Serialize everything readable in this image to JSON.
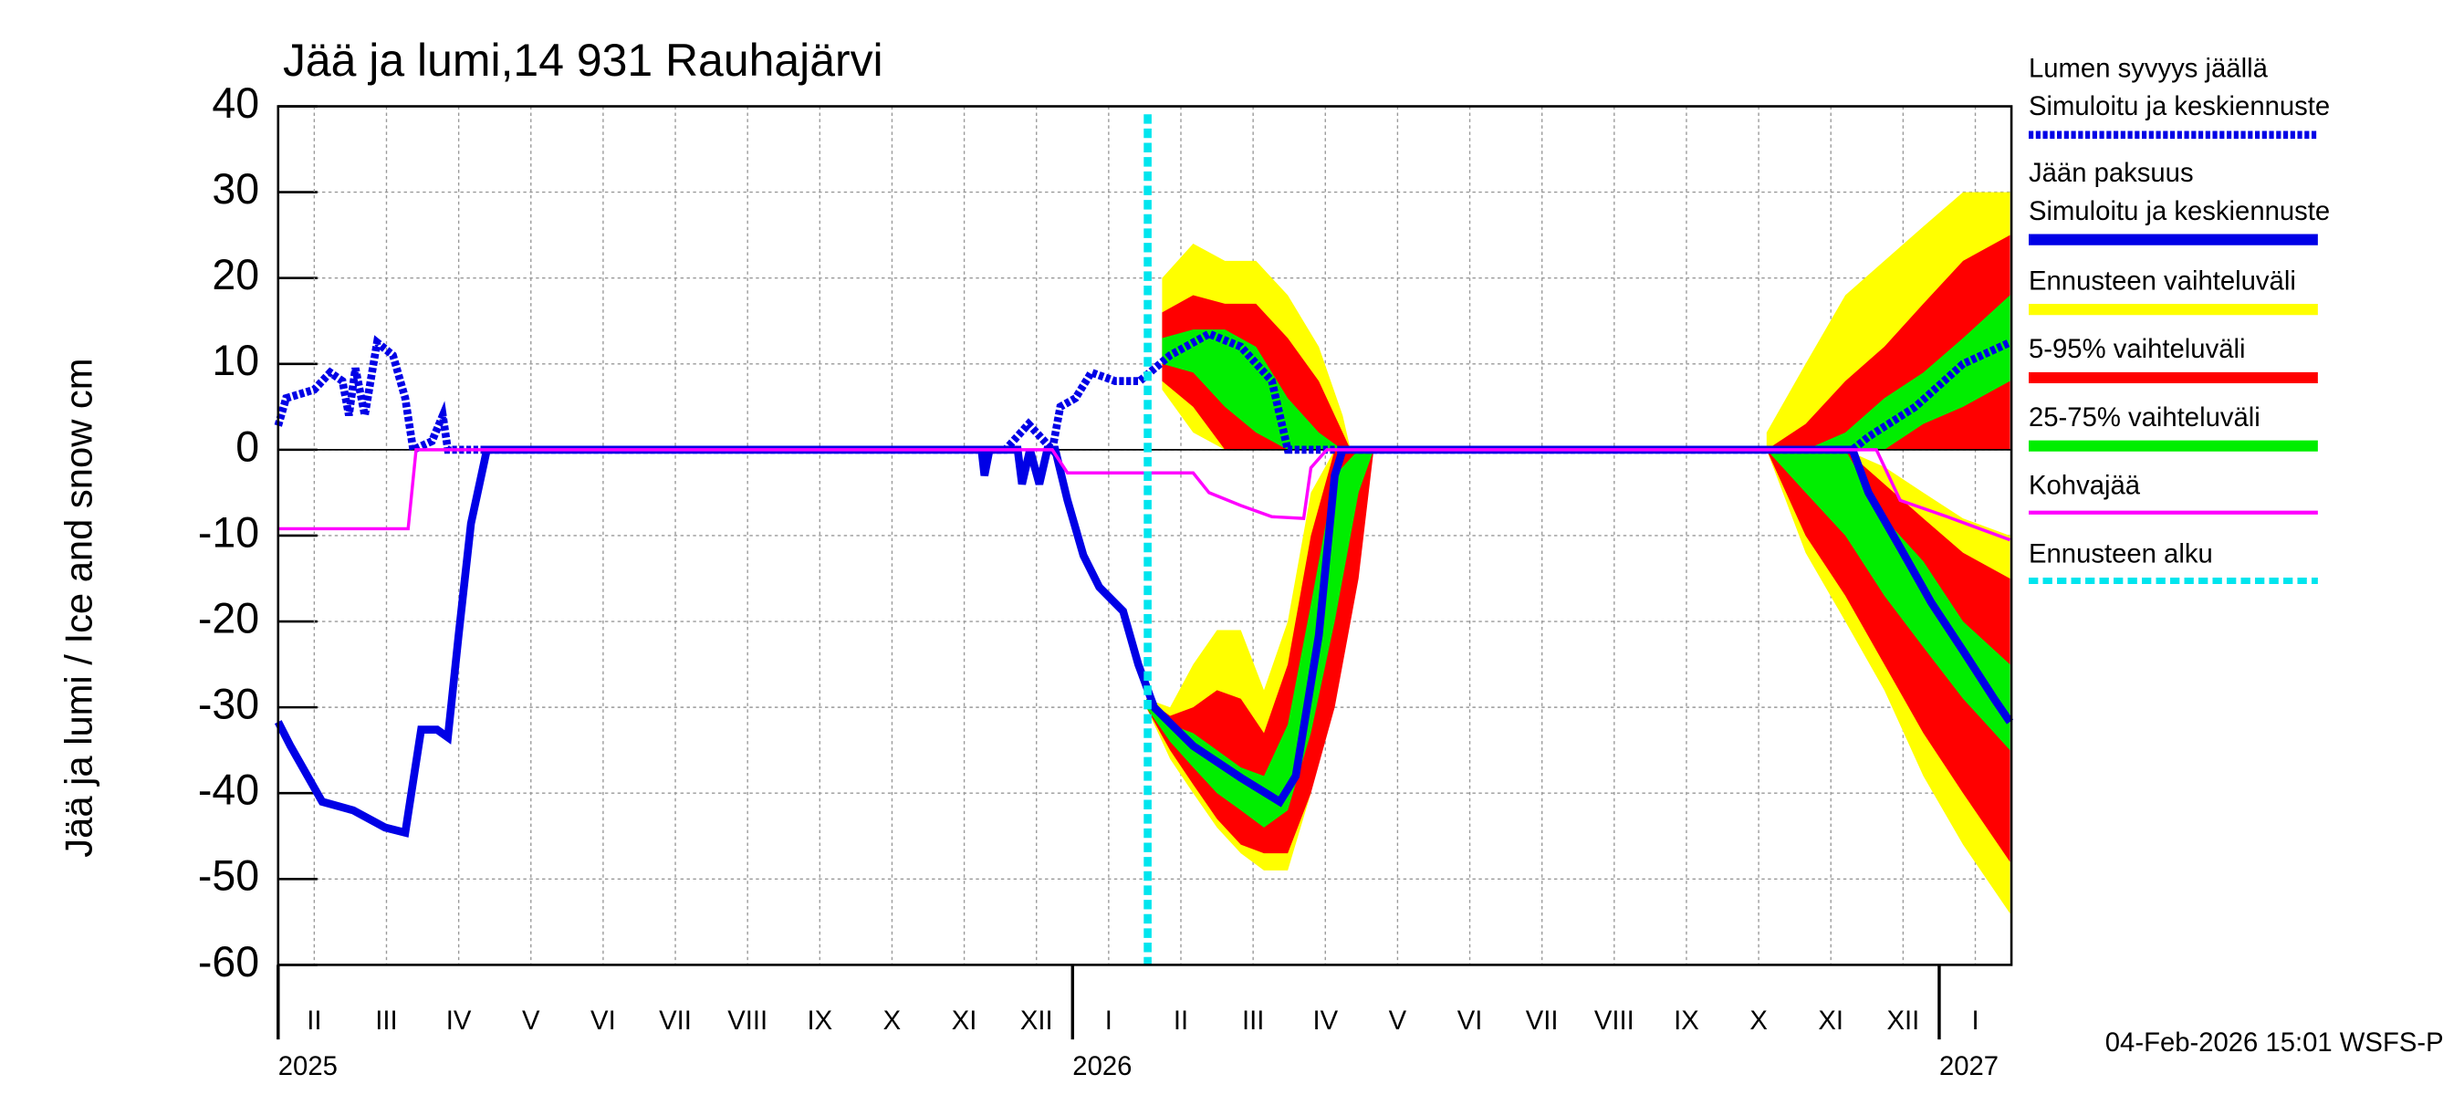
{
  "chart_data": {
    "type": "line",
    "title": "Jää ja lumi,14 931 Rauhajärvi",
    "y_label": "Jää ja lumi / Ice and snow    cm",
    "footer": "04-Feb-2026 15:01 WSFS-P",
    "ylim": [
      -60,
      40
    ],
    "yticks": [
      40,
      30,
      20,
      10,
      0,
      -10,
      -20,
      -30,
      -40,
      -50,
      -60
    ],
    "xlim": [
      0,
      24
    ],
    "xticks": [
      {
        "value": 0.5,
        "label": "II"
      },
      {
        "value": 1.5,
        "label": "III"
      },
      {
        "value": 2.5,
        "label": "IV"
      },
      {
        "value": 3.5,
        "label": "V"
      },
      {
        "value": 4.5,
        "label": "VI"
      },
      {
        "value": 5.5,
        "label": "VII"
      },
      {
        "value": 6.5,
        "label": "VIII"
      },
      {
        "value": 7.5,
        "label": "IX"
      },
      {
        "value": 8.5,
        "label": "X"
      },
      {
        "value": 9.5,
        "label": "XI"
      },
      {
        "value": 10.5,
        "label": "XII"
      },
      {
        "value": 11.5,
        "label": "I"
      },
      {
        "value": 12.5,
        "label": "II"
      },
      {
        "value": 13.5,
        "label": "III"
      },
      {
        "value": 14.5,
        "label": "IV"
      },
      {
        "value": 15.5,
        "label": "V"
      },
      {
        "value": 16.5,
        "label": "VI"
      },
      {
        "value": 17.5,
        "label": "VII"
      },
      {
        "value": 18.5,
        "label": "VIII"
      },
      {
        "value": 19.5,
        "label": "IX"
      },
      {
        "value": 20.5,
        "label": "X"
      },
      {
        "value": 21.5,
        "label": "XI"
      },
      {
        "value": 22.5,
        "label": "XII"
      },
      {
        "value": 23.5,
        "label": "I"
      }
    ],
    "year_ticks": [
      {
        "value": 0,
        "label": "2025"
      },
      {
        "value": 11,
        "label": "2026"
      },
      {
        "value": 23,
        "label": "2027"
      }
    ],
    "grid": true,
    "forecast_start": {
      "name": "Ennusteen alku",
      "x": 12.04,
      "color": "#00e5ee"
    },
    "bands": [
      {
        "name": "Ennusteen vaihteluväli",
        "color": "#ffff00",
        "pieces": [
          {
            "x": [
              12.24,
              12.67,
              13.11,
              13.54,
              13.98,
              14.41,
              14.74,
              14.85
            ],
            "low": [
              7,
              2,
              0,
              0,
              0,
              0,
              0,
              0
            ],
            "high": [
              20,
              24,
              22,
              22,
              18,
              12,
              4,
              0
            ]
          },
          {
            "x": [
              12.02,
              12.35,
              12.67,
              13.0,
              13.33,
              13.65,
              13.98,
              14.3,
              14.63,
              14.96,
              15.17
            ],
            "low": [
              -30,
              -36,
              -40,
              -44,
              -47,
              -49,
              -49,
              -40,
              -25,
              -10,
              0
            ],
            "high": [
              -29,
              -30,
              -25,
              -21,
              -21,
              -28,
              -20,
              -5,
              0,
              0,
              0
            ]
          },
          {
            "x": [
              20.61,
              21.15,
              21.7,
              22.24,
              22.78,
              23.33,
              23.98
            ],
            "low": [
              0,
              0,
              0,
              0,
              0,
              0,
              0
            ],
            "high": [
              2,
              10,
              18,
              22,
              26,
              30,
              30
            ]
          },
          {
            "x": [
              20.61,
              21.15,
              21.7,
              22.24,
              22.78,
              23.33,
              23.98
            ],
            "low": [
              0,
              -12,
              -20,
              -28,
              -38,
              -46,
              -54
            ],
            "high": [
              0,
              0,
              0,
              -2,
              -5,
              -8,
              -10
            ]
          }
        ]
      },
      {
        "name": "5-95% vaihteluväli",
        "color": "#ff0000",
        "pieces": [
          {
            "x": [
              12.24,
              12.67,
              13.11,
              13.54,
              13.98,
              14.41,
              14.74,
              14.85
            ],
            "low": [
              8,
              5,
              0,
              0,
              0,
              0,
              0,
              0
            ],
            "high": [
              16,
              18,
              17,
              17,
              13,
              8,
              2,
              0
            ]
          },
          {
            "x": [
              12.02,
              12.35,
              12.67,
              13.0,
              13.33,
              13.65,
              13.98,
              14.3,
              14.63,
              14.96,
              15.17
            ],
            "low": [
              -30,
              -35,
              -39,
              -43,
              -46,
              -47,
              -47,
              -40,
              -30,
              -15,
              0
            ],
            "high": [
              -29,
              -31,
              -30,
              -28,
              -29,
              -33,
              -25,
              -10,
              0,
              0,
              0
            ]
          },
          {
            "x": [
              20.61,
              21.15,
              21.7,
              22.24,
              22.78,
              23.33,
              23.98
            ],
            "low": [
              0,
              0,
              0,
              0,
              0,
              0,
              0
            ],
            "high": [
              0,
              3,
              8,
              12,
              17,
              22,
              25
            ]
          },
          {
            "x": [
              20.61,
              21.15,
              21.7,
              22.24,
              22.78,
              23.33,
              23.98
            ],
            "low": [
              0,
              -10,
              -17,
              -25,
              -33,
              -40,
              -48
            ],
            "high": [
              0,
              0,
              0,
              -4,
              -8,
              -12,
              -15
            ]
          }
        ]
      },
      {
        "name": "25-75% vaihteluväli",
        "color": "#00ee00",
        "pieces": [
          {
            "x": [
              12.24,
              12.67,
              13.11,
              13.54,
              13.98,
              14.41,
              14.74,
              14.85
            ],
            "low": [
              10,
              9,
              5,
              2,
              0,
              0,
              0,
              0
            ],
            "high": [
              13,
              14,
              14,
              12,
              6,
              2,
              0,
              0
            ]
          },
          {
            "x": [
              12.02,
              12.35,
              12.67,
              13.0,
              13.33,
              13.65,
              13.98,
              14.3,
              14.63,
              14.96,
              15.17
            ],
            "low": [
              -30,
              -34,
              -37,
              -40,
              -42,
              -44,
              -42,
              -33,
              -20,
              -5,
              0
            ],
            "high": [
              -29,
              -32,
              -33,
              -35,
              -37,
              -38,
              -32,
              -18,
              -3,
              0,
              0
            ]
          },
          {
            "x": [
              20.61,
              21.15,
              21.7,
              22.24,
              22.78,
              23.33,
              23.98
            ],
            "low": [
              0,
              0,
              0,
              0,
              3,
              5,
              8
            ],
            "high": [
              0,
              0,
              2,
              6,
              9,
              13,
              18
            ]
          },
          {
            "x": [
              20.61,
              21.15,
              21.7,
              22.24,
              22.78,
              23.33,
              23.98
            ],
            "low": [
              0,
              -5,
              -10,
              -17,
              -23,
              -29,
              -35
            ],
            "high": [
              0,
              0,
              0,
              -8,
              -13,
              -20,
              -25
            ]
          }
        ]
      }
    ],
    "series": [
      {
        "name": "Lumen syvyys jäällä",
        "subtitle": "Simuloitu ja keskiennuste",
        "color": "#0000e6",
        "dashed": true,
        "x": [
          0,
          0.11,
          0.5,
          0.72,
          0.89,
          0.98,
          1.07,
          1.2,
          1.37,
          1.59,
          1.76,
          1.87,
          2.13,
          2.28,
          2.35,
          10.07,
          10.39,
          10.72,
          10.83,
          11.04,
          11.26,
          11.59,
          11.93,
          12.35,
          12.89,
          13.33,
          13.76,
          13.98,
          21.8,
          22.02,
          22.67,
          23.33,
          23.98
        ],
        "values": [
          2.8,
          6,
          7,
          9,
          8,
          4,
          9.5,
          4,
          12.5,
          11,
          6,
          0,
          1,
          4,
          0,
          0,
          3,
          0,
          5,
          6,
          9,
          8,
          8,
          11,
          13.5,
          12,
          8,
          0,
          0,
          1.5,
          5,
          10,
          12.5
        ]
      },
      {
        "name": "Jään paksuus",
        "subtitle": "Simuloitu ja keskiennuste",
        "color": "#0000e6",
        "dashed": false,
        "x": [
          0,
          0.17,
          0.61,
          1.04,
          1.48,
          1.76,
          1.98,
          2.2,
          2.35,
          2.5,
          2.67,
          2.89,
          9.74,
          9.78,
          9.85,
          10.24,
          10.3,
          10.41,
          10.54,
          10.65,
          10.76,
          10.93,
          11.15,
          11.37,
          11.7,
          11.91,
          12.13,
          12.67,
          13.33,
          13.87,
          14.09,
          14.41,
          14.63,
          14.74,
          21.8,
          22.02,
          22.46,
          22.89,
          23.33,
          23.76,
          23.98
        ],
        "values": [
          -31.7,
          -34.5,
          -41,
          -42,
          -44,
          -44.6,
          -32.6,
          -32.6,
          -33.5,
          -21.5,
          -8.6,
          0,
          0,
          -3,
          0,
          0,
          -4,
          0,
          -4,
          0,
          0,
          -5.9,
          -12.3,
          -16,
          -18.8,
          -25,
          -30,
          -34.5,
          -38.2,
          -41,
          -38,
          -21.6,
          -3,
          0,
          0,
          -5,
          -11.4,
          -17.8,
          -23.4,
          -29,
          -31.7
        ]
      },
      {
        "name": "Kohvajää",
        "color": "#ff00ff",
        "dashed": false,
        "x": [
          0,
          1.8,
          1.91,
          10.72,
          10.93,
          12.67,
          12.89,
          13.33,
          13.76,
          14.2,
          14.3,
          14.52,
          22.13,
          22.46,
          23.11,
          23.98
        ],
        "values": [
          -9.2,
          -9.2,
          0,
          0,
          -2.7,
          -2.7,
          -5,
          -6.5,
          -7.8,
          -8,
          -2.1,
          0,
          0,
          -5.9,
          -7.8,
          -10.5
        ]
      }
    ]
  }
}
